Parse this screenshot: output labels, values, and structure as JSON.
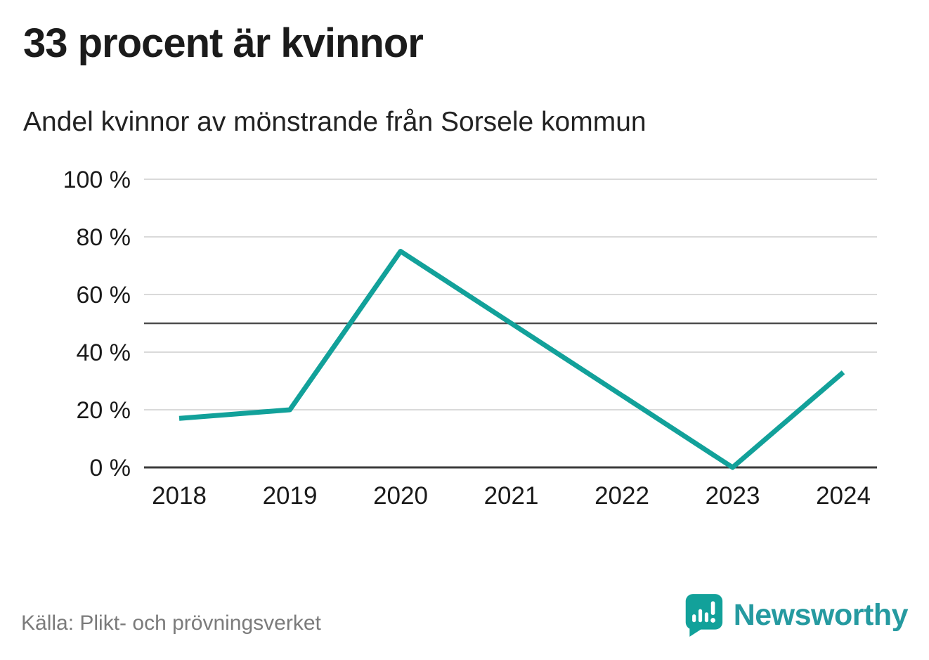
{
  "header": {
    "title": "33 procent är kvinnor",
    "subtitle": "Andel kvinnor av mönstrande från Sorsele kommun"
  },
  "footer": {
    "source": "Källa: Plikt- och prövningsverket",
    "brand": "Newsworthy",
    "brand_icon_color": "#12a19a",
    "brand_text_color": "#259aa0"
  },
  "chart_data": {
    "type": "line",
    "title": "33 procent är kvinnor",
    "subtitle": "Andel kvinnor av mönstrande från Sorsele kommun",
    "x": [
      "2018",
      "2019",
      "2020",
      "2021",
      "2022",
      "2023",
      "2024"
    ],
    "series": [
      {
        "name": "Andel kvinnor av mönstrande från Sorsele kommun",
        "values": [
          17,
          20,
          75,
          50,
          25,
          0,
          33
        ]
      }
    ],
    "xlabel": "",
    "ylabel": "",
    "ylim": [
      0,
      100
    ],
    "yticks": [
      0,
      20,
      40,
      60,
      80,
      100
    ],
    "ytick_labels": [
      "0 %",
      "20 %",
      "40 %",
      "60 %",
      "80 %",
      "100 %"
    ],
    "reference_line": 50,
    "grid": true,
    "legend_position": "none",
    "line_color": "#12a19a",
    "gridline_color": "#dadada",
    "reference_line_color": "#4d4d4d",
    "axis_color": "#3b3b3b",
    "tick_label_color": "#1a1a1a"
  }
}
